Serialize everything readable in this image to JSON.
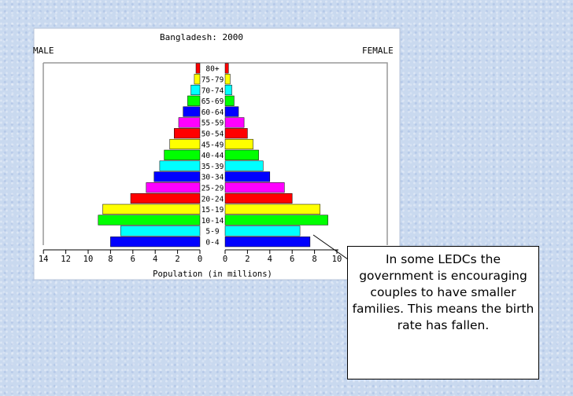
{
  "chart_data": {
    "type": "bar",
    "title": "Bangladesh: 2000",
    "left_label": "MALE",
    "right_label": "FEMALE",
    "xlabel": "Population (in millions)",
    "categories": [
      "80+",
      "75-79",
      "70-74",
      "65-69",
      "60-64",
      "55-59",
      "50-54",
      "45-49",
      "40-44",
      "35-39",
      "30-34",
      "25-29",
      "20-24",
      "15-19",
      "10-14",
      "5-9",
      "0-4"
    ],
    "series": [
      {
        "name": "MALE",
        "values": [
          0.35,
          0.5,
          0.8,
          1.1,
          1.5,
          1.9,
          2.3,
          2.7,
          3.2,
          3.6,
          4.1,
          4.8,
          6.2,
          8.7,
          9.1,
          7.1,
          8.0
        ]
      },
      {
        "name": "FEMALE",
        "values": [
          0.3,
          0.45,
          0.6,
          0.8,
          1.2,
          1.7,
          2.0,
          2.5,
          3.0,
          3.4,
          4.0,
          5.3,
          6.0,
          8.5,
          9.2,
          6.7,
          7.6
        ]
      }
    ],
    "bar_colors": [
      "#ff0000",
      "#ffff00",
      "#00ffff",
      "#00ff00",
      "#0000ff",
      "#ff00ff",
      "#ff0000",
      "#ffff00",
      "#00ff00",
      "#00ffff",
      "#0000ff",
      "#ff00ff",
      "#ff0000",
      "#ffff00",
      "#00ff00",
      "#00ffff",
      "#0000ff"
    ],
    "left_axis_ticks": [
      "14",
      "12",
      "10",
      "8",
      "6",
      "4",
      "2",
      "0"
    ],
    "right_axis_ticks": [
      "0",
      "2",
      "4",
      "6",
      "8",
      "10"
    ],
    "xlim_left": [
      14,
      0
    ],
    "xlim_right": [
      0,
      10
    ]
  },
  "annotation": {
    "text": "In some LEDCs the government is encouraging couples to have smaller families.  This means the birth rate has fallen."
  }
}
